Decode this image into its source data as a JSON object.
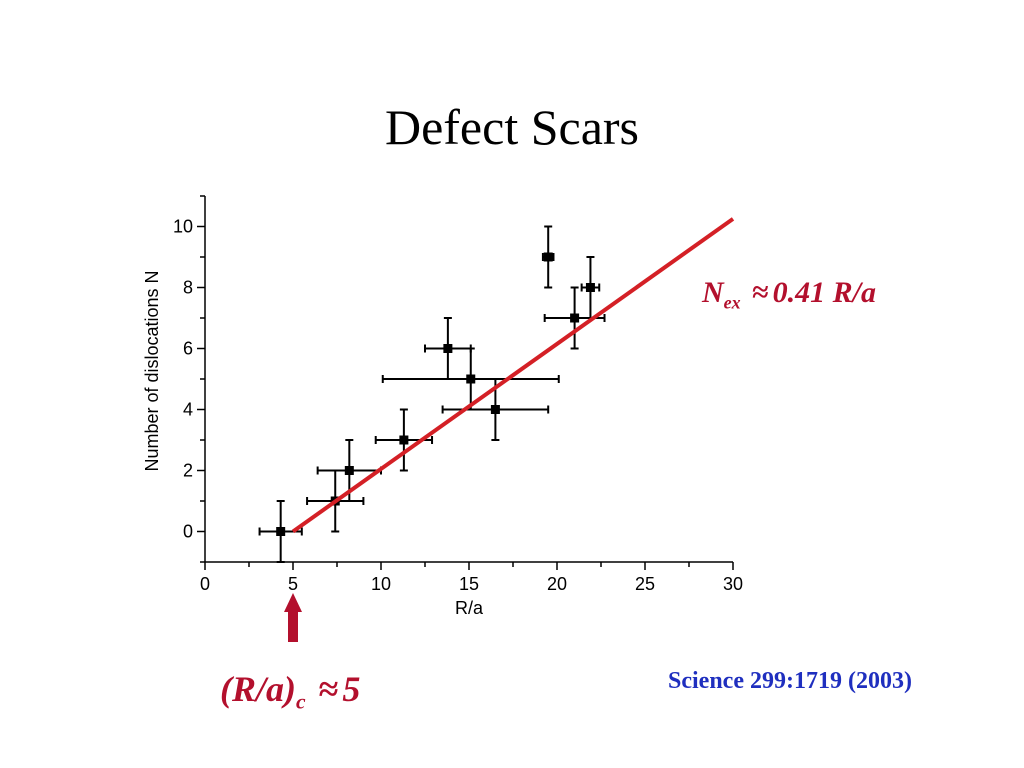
{
  "slide": {
    "title": "Defect Scars",
    "fit_label": {
      "symbol": "N",
      "subscript": "ex",
      "approx": "≈",
      "expression": "0.41 R/a"
    },
    "critical_label": {
      "symbol": "(R/a)",
      "subscript": "c",
      "approx": "≈",
      "value": "5"
    },
    "citation": "Science 299:1719 (2003)"
  },
  "colors": {
    "fit_line": "#d42026",
    "annotation": "#b3102d",
    "citation": "#1f2fbf",
    "points": "#000000"
  },
  "chart_data": {
    "type": "scatter",
    "title": "",
    "xlabel": "R/a",
    "ylabel": "Number of dislocations N",
    "xlim": [
      0,
      30
    ],
    "ylim": [
      -1,
      11
    ],
    "xticks": [
      0,
      5,
      10,
      15,
      20,
      25,
      30
    ],
    "yticks": [
      0,
      2,
      4,
      6,
      8,
      10
    ],
    "grid": false,
    "points": [
      {
        "x": 4.3,
        "y": 0,
        "xerr": 1.2,
        "yerr": 1
      },
      {
        "x": 7.4,
        "y": 1,
        "xerr": 1.6,
        "yerr": 1
      },
      {
        "x": 8.2,
        "y": 2,
        "xerr": 1.8,
        "yerr": 1
      },
      {
        "x": 11.3,
        "y": 3,
        "xerr": 1.6,
        "yerr": 1
      },
      {
        "x": 13.8,
        "y": 6,
        "xerr": 1.3,
        "yerr": 1
      },
      {
        "x": 15.1,
        "y": 5,
        "xerr": 5.0,
        "yerr": 1
      },
      {
        "x": 16.5,
        "y": 4,
        "xerr": 3.0,
        "yerr": 1
      },
      {
        "x": 19.5,
        "y": 9,
        "xerr": 0.3,
        "yerr": 1
      },
      {
        "x": 21.0,
        "y": 7,
        "xerr": 1.7,
        "yerr": 1
      },
      {
        "x": 21.9,
        "y": 8,
        "xerr": 0.5,
        "yerr": 1
      }
    ],
    "fit_line": {
      "slope": 0.41,
      "x_intercept": 5
    },
    "arrow_at_x": 5
  }
}
